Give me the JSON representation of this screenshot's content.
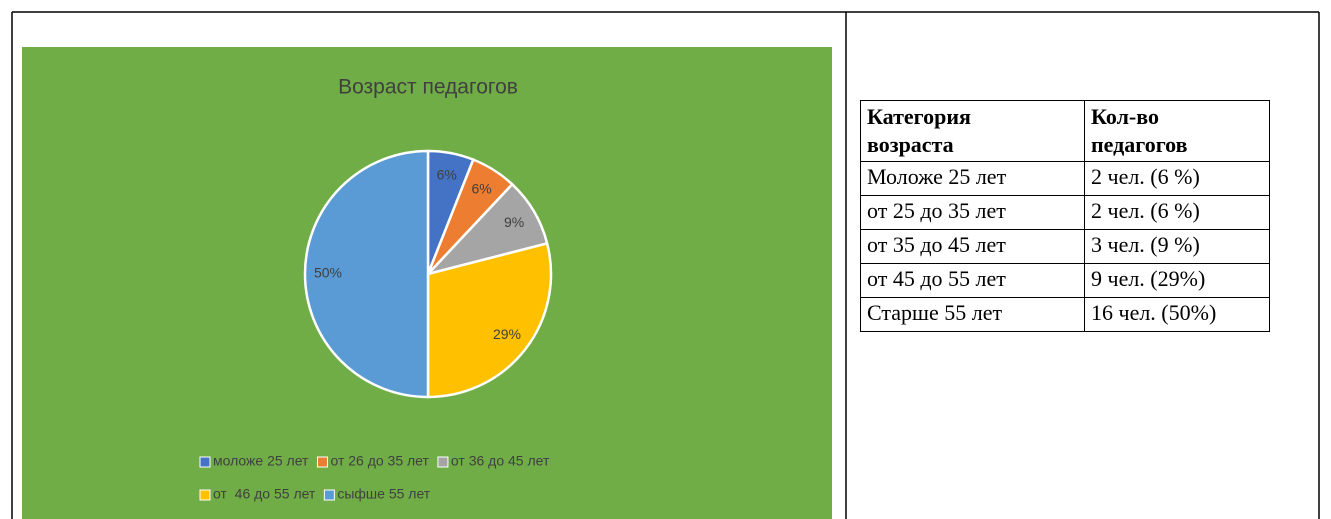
{
  "chart_data": {
    "type": "pie",
    "title": "Возраст педагогов",
    "categories": [
      "моложе 25 лет",
      "от 26 до 35 лет",
      "от 36 до 45 лет",
      "от  46 до 55 лет",
      "сыфше 55 лет"
    ],
    "values": [
      6,
      6,
      9,
      29,
      50
    ],
    "value_labels": [
      "6%",
      "6%",
      "9%",
      "29%",
      "50%"
    ],
    "colors": [
      "#4472c4",
      "#ed7d31",
      "#a5a5a5",
      "#ffc000",
      "#5b9bd5"
    ],
    "background": "#70ad47"
  },
  "table": {
    "header": [
      "Категория возраста",
      "Кол-во педагогов"
    ],
    "rows": [
      [
        "Моложе 25 лет",
        "2 чел. (6 %)"
      ],
      [
        "от 25 до 35 лет",
        "2 чел. (6 %)"
      ],
      [
        "от 35 до 45 лет",
        "3 чел. (9 %)"
      ],
      [
        "от 45 до 55 лет",
        "9 чел. (29%)"
      ],
      [
        "Старше 55 лет",
        "16 чел. (50%)"
      ]
    ]
  }
}
